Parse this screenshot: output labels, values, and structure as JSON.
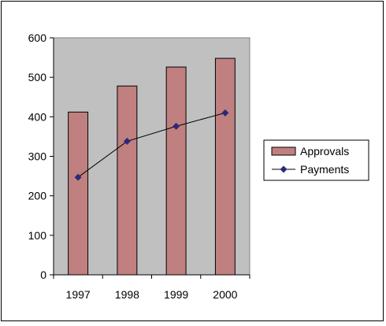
{
  "chart_data": {
    "type": "bar",
    "categories": [
      "1997",
      "1998",
      "1999",
      "2000"
    ],
    "series": [
      {
        "name": "Approvals",
        "kind": "bar",
        "values": [
          412,
          478,
          526,
          548
        ]
      },
      {
        "name": "Payments",
        "kind": "line",
        "values": [
          247,
          338,
          376,
          410
        ]
      }
    ],
    "title": "",
    "xlabel": "",
    "ylabel": "",
    "ylim": [
      0,
      600
    ],
    "yticks": [
      0,
      100,
      200,
      300,
      400,
      500,
      600
    ],
    "grid": false,
    "legend": "right",
    "colors": {
      "plot_background": "#c0c0c0",
      "bar_fill": "#c08080",
      "bar_stroke": "#000000",
      "line": "#000000",
      "marker": "#2a2a7a"
    }
  }
}
